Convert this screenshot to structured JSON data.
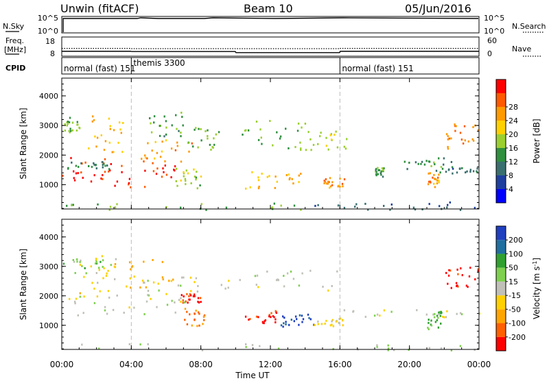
{
  "header": {
    "station": "Unwin (fitACF)",
    "beam": "Beam 10",
    "date": "05/Jun/2016"
  },
  "top_panels": {
    "nsky": {
      "left_label": "N.Sky",
      "left_ticks": [
        "10^5",
        "10^0"
      ],
      "right_label": "N.Search",
      "right_ticks": [
        "10^5",
        "10^0"
      ]
    },
    "freq": {
      "left_label_1": "Freq.",
      "left_label_2": "[MHz]",
      "left_ticks": [
        "18",
        "8"
      ],
      "right_label": "Nave",
      "right_ticks": [
        "60",
        "0"
      ],
      "freq_mhz_segments": [
        {
          "start_h": 0.0,
          "end_h": 4.0,
          "value": 11.2
        },
        {
          "start_h": 4.0,
          "end_h": 10.0,
          "value": 11.0
        },
        {
          "start_h": 10.0,
          "end_h": 16.0,
          "value": 10.0
        },
        {
          "start_h": 16.0,
          "end_h": 24.0,
          "value": 11.2
        }
      ],
      "nave_segments": [
        {
          "start_h": 0.0,
          "end_h": 4.0,
          "value": 24
        },
        {
          "start_h": 4.0,
          "end_h": 16.0,
          "value": 23
        },
        {
          "start_h": 16.0,
          "end_h": 24.0,
          "value": 24
        }
      ]
    },
    "cpid": {
      "label": "CPID",
      "segments": [
        {
          "start_h": 0.0,
          "text": "normal (fast) 151"
        },
        {
          "start_h": 4.0,
          "text": "themis 3300"
        },
        {
          "start_h": 16.0,
          "text": "normal (fast) 151"
        }
      ]
    }
  },
  "chart_data": [
    {
      "type": "heatmap",
      "title": "",
      "xlabel": "Time UT",
      "ylabel": "Slant Range [km]",
      "xlim": [
        "00:00",
        "24:00"
      ],
      "ylim": [
        180,
        4600
      ],
      "x_ticks": [
        "00:00",
        "04:00",
        "08:00",
        "12:00",
        "16:00",
        "20:00",
        "00:00"
      ],
      "y_ticks": [
        "1000",
        "2000",
        "3000",
        "4000"
      ],
      "colorbar": {
        "label": "Power [dB]",
        "ticks": [
          "4",
          "8",
          "12",
          "16",
          "20",
          "24",
          "28"
        ],
        "range": [
          0,
          30
        ],
        "colors": [
          "#0000ff",
          "#1f3f9f",
          "#3a6f6f",
          "#2f8f3f",
          "#9bcf30",
          "#ffd000",
          "#ff9a00",
          "#ff5a00",
          "#ff0000"
        ]
      },
      "regions": [
        {
          "t0": 0.0,
          "t1": 2.8,
          "r0": 1050,
          "r1": 2050,
          "value": 27
        },
        {
          "t0": 0.3,
          "t1": 2.8,
          "r0": 1500,
          "r1": 1800,
          "value": 10
        },
        {
          "t0": 0.0,
          "t1": 1.2,
          "r0": 2800,
          "r1": 3300,
          "value": 14
        },
        {
          "t0": 1.0,
          "t1": 3.5,
          "r0": 2100,
          "r1": 3400,
          "value": 20
        },
        {
          "t0": 3.0,
          "t1": 6.5,
          "r0": 900,
          "r1": 1850,
          "value": 27
        },
        {
          "t0": 4.5,
          "t1": 7.5,
          "r0": 1800,
          "r1": 2600,
          "value": 22
        },
        {
          "t0": 5.0,
          "t1": 7.0,
          "r0": 2600,
          "r1": 3500,
          "value": 12
        },
        {
          "t0": 6.5,
          "t1": 8.0,
          "r0": 900,
          "r1": 1600,
          "value": 16
        },
        {
          "t0": 7.2,
          "t1": 9.0,
          "r0": 2200,
          "r1": 3000,
          "value": 14
        },
        {
          "t0": 10.0,
          "t1": 14.0,
          "r0": 2200,
          "r1": 3200,
          "value": 13
        },
        {
          "t0": 10.5,
          "t1": 14.0,
          "r0": 900,
          "r1": 1500,
          "value": 20
        },
        {
          "t0": 14.0,
          "t1": 16.5,
          "r0": 2200,
          "r1": 2900,
          "value": 16
        },
        {
          "t0": 15.0,
          "t1": 16.3,
          "r0": 900,
          "r1": 1300,
          "value": 22
        },
        {
          "t0": 18.0,
          "t1": 18.5,
          "r0": 1300,
          "r1": 1600,
          "value": 12
        },
        {
          "t0": 19.5,
          "t1": 22.5,
          "r0": 1550,
          "r1": 1950,
          "value": 11
        },
        {
          "t0": 21.0,
          "t1": 21.7,
          "r0": 950,
          "r1": 1450,
          "value": 22
        },
        {
          "t0": 21.5,
          "t1": 24.0,
          "r0": 1400,
          "r1": 1600,
          "value": 9
        },
        {
          "t0": 22.0,
          "t1": 24.0,
          "r0": 2200,
          "r1": 3100,
          "value": 23
        },
        {
          "t0": 14.5,
          "t1": 24.0,
          "r0": 180,
          "r1": 450,
          "value": 7
        },
        {
          "t0": 0.0,
          "t1": 14.5,
          "r0": 180,
          "r1": 400,
          "value": 14
        }
      ]
    },
    {
      "type": "heatmap",
      "title": "",
      "xlabel": "Time UT",
      "ylabel": "Slant Range [km]",
      "xlim": [
        "00:00",
        "24:00"
      ],
      "ylim": [
        180,
        4600
      ],
      "x_ticks": [
        "00:00",
        "04:00",
        "08:00",
        "12:00",
        "16:00",
        "20:00",
        "00:00"
      ],
      "y_ticks": [
        "1000",
        "2000",
        "3000",
        "4000"
      ],
      "colorbar": {
        "label": "Velocity [m s^-1]",
        "ticks": [
          "200",
          "100",
          "50",
          "15",
          "-15",
          "-50",
          "-100",
          "-200"
        ],
        "range": [
          -250,
          250
        ],
        "colors": [
          "#ff0000",
          "#ff6000",
          "#ffa500",
          "#ffd000",
          "#c0c0b8",
          "#7fd04f",
          "#30a030",
          "#1f6f9f",
          "#1f3fbf"
        ]
      },
      "regions": [
        {
          "t0": 0.0,
          "t1": 6.5,
          "r0": 1350,
          "r1": 2050,
          "value": 0
        },
        {
          "t0": 0.0,
          "t1": 2.8,
          "r0": 2800,
          "r1": 3300,
          "value": 60
        },
        {
          "t0": 1.0,
          "t1": 3.5,
          "r0": 2100,
          "r1": 3400,
          "value": -60
        },
        {
          "t0": 3.5,
          "t1": 6.5,
          "r0": 2200,
          "r1": 3300,
          "value": -80
        },
        {
          "t0": 4.5,
          "t1": 7.8,
          "r0": 1800,
          "r1": 2700,
          "value": 0
        },
        {
          "t0": 6.8,
          "t1": 8.0,
          "r0": 1800,
          "r1": 2100,
          "value": -220
        },
        {
          "t0": 7.0,
          "t1": 8.2,
          "r0": 1000,
          "r1": 1600,
          "value": -150
        },
        {
          "t0": 9.0,
          "t1": 16.3,
          "r0": 2200,
          "r1": 2900,
          "value": 0
        },
        {
          "t0": 10.5,
          "t1": 12.5,
          "r0": 1100,
          "r1": 1550,
          "value": -220
        },
        {
          "t0": 12.5,
          "t1": 14.5,
          "r0": 950,
          "r1": 1400,
          "value": 220
        },
        {
          "t0": 14.5,
          "t1": 16.3,
          "r0": 1000,
          "r1": 1300,
          "value": -40
        },
        {
          "t0": 16.0,
          "t1": 24.0,
          "r0": 1300,
          "r1": 1550,
          "value": 0
        },
        {
          "t0": 21.0,
          "t1": 22.0,
          "r0": 900,
          "r1": 1500,
          "value": 80
        },
        {
          "t0": 22.0,
          "t1": 24.0,
          "r0": 2300,
          "r1": 3000,
          "value": -230
        },
        {
          "t0": 0.0,
          "t1": 24.0,
          "r0": 180,
          "r1": 400,
          "value": 30
        }
      ]
    }
  ]
}
